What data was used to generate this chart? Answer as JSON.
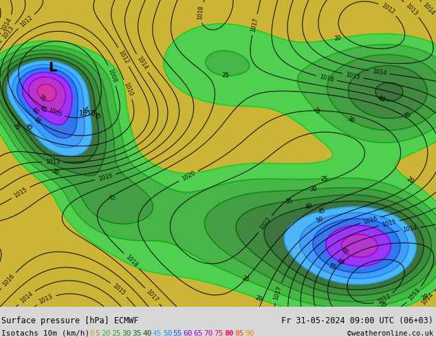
{
  "title_left": "Surface pressure [hPa] ECMWF",
  "title_right": "Fr 31-05-2024 09:00 UTC (06+03)",
  "legend_label": "Isotachs 10m (km/h)",
  "copyright": "©weatheronline.co.uk",
  "background_color": "#d8d8d8",
  "legend_values": [
    "0",
    "5",
    "20",
    "25",
    "30",
    "35",
    "40",
    "45",
    "50",
    "55",
    "60",
    "65",
    "70",
    "75",
    "80",
    "85",
    "90"
  ],
  "legend_colors": [
    "#d4b400",
    "#c8a000",
    "#20c820",
    "#1aaa1a",
    "#148c14",
    "#0e6e0e",
    "#0a500a",
    "#00aaff",
    "#0080ff",
    "#0050ff",
    "#8000ff",
    "#aa00cc",
    "#cc00aa",
    "#ee0088",
    "#ff0066",
    "#ff4400",
    "#ff8800"
  ],
  "fig_width": 6.34,
  "fig_height": 4.9,
  "dpi": 100
}
